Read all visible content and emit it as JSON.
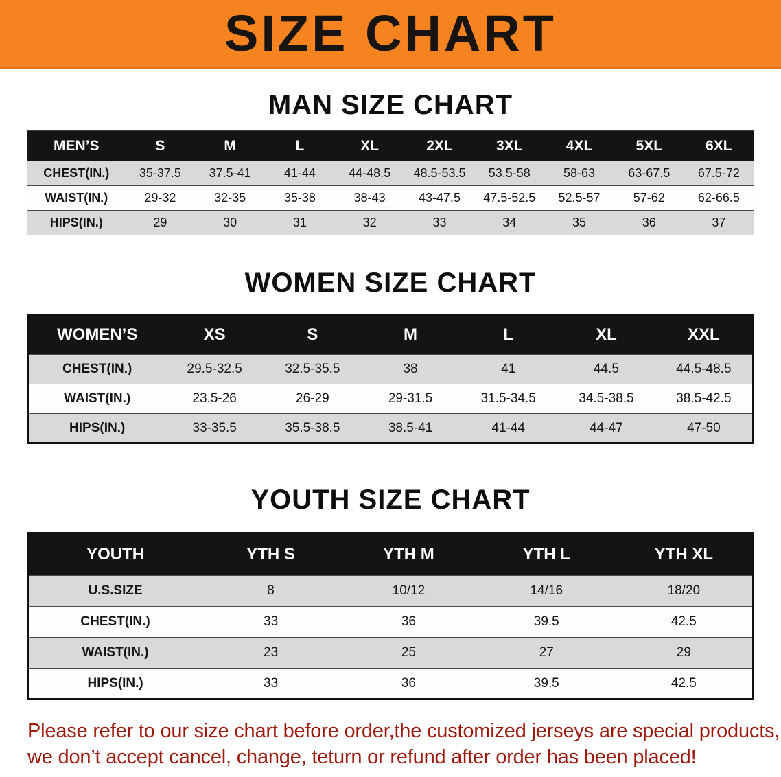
{
  "banner": {
    "title": "SIZE CHART",
    "bg": "#f5831f"
  },
  "sections": [
    {
      "heading": "MAN SIZE CHART",
      "table": {
        "header_label": "MEN’S",
        "columns": [
          "S",
          "M",
          "L",
          "XL",
          "2XL",
          "3XL",
          "4XL",
          "5XL",
          "6XL"
        ],
        "rows": [
          {
            "label": "CHEST(IN.)",
            "values": [
              "35-37.5",
              "37.5-41",
              "41-44",
              "44-48.5",
              "48.5-53.5",
              "53.5-58",
              "58-63",
              "63-67.5",
              "67.5-72"
            ]
          },
          {
            "label": "WAIST(IN.)",
            "values": [
              "29-32",
              "32-35",
              "35-38",
              "38-43",
              "43-47.5",
              "47.5-52.5",
              "52.5-57",
              "57-62",
              "62-66.5"
            ]
          },
          {
            "label": "HIPS(IN.)",
            "values": [
              "29",
              "30",
              "31",
              "32",
              "33",
              "34",
              "35",
              "36",
              "37"
            ]
          }
        ]
      }
    },
    {
      "heading": "WOMEN SIZE CHART",
      "table": {
        "header_label": "WOMEN’S",
        "columns": [
          "XS",
          "S",
          "M",
          "L",
          "XL",
          "XXL"
        ],
        "rows": [
          {
            "label": "CHEST(IN.)",
            "values": [
              "29.5-32.5",
              "32.5-35.5",
              "38",
              "41",
              "44.5",
              "44.5-48.5"
            ]
          },
          {
            "label": "WAIST(IN.)",
            "values": [
              "23.5-26",
              "26-29",
              "29-31.5",
              "31.5-34.5",
              "34.5-38.5",
              "38.5-42.5"
            ]
          },
          {
            "label": "HIPS(IN.)",
            "values": [
              "33-35.5",
              "35.5-38.5",
              "38.5-41",
              "41-44",
              "44-47",
              "47-50"
            ]
          }
        ]
      }
    },
    {
      "heading": "YOUTH SIZE CHART",
      "table": {
        "header_label": "YOUTH",
        "columns": [
          "YTH S",
          "YTH M",
          "YTH L",
          "YTH XL"
        ],
        "rows": [
          {
            "label": "U.S.SIZE",
            "values": [
              "8",
              "10/12",
              "14/16",
              "18/20"
            ]
          },
          {
            "label": "CHEST(IN.)",
            "values": [
              "33",
              "36",
              "39.5",
              "42.5"
            ]
          },
          {
            "label": "WAIST(IN.)",
            "values": [
              "23",
              "25",
              "27",
              "29"
            ]
          },
          {
            "label": "HIPS(IN.)",
            "values": [
              "33",
              "36",
              "39.5",
              "42.5"
            ]
          }
        ]
      }
    }
  ],
  "disclaimer": {
    "line1": "Please refer to our size chart before order,the customized jerseys are special products,",
    "line2": "we don’t accept cancel, change, teturn or refund after order has been placed!",
    "color": "#9e180b"
  },
  "colors": {
    "header_bar": "#141414",
    "row_shade": "#d9d9d9",
    "row_plain": "#fdfdfd",
    "banner_bg": "#f5831f"
  }
}
